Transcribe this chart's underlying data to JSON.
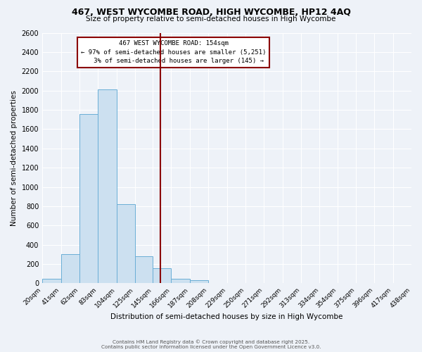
{
  "title": "467, WEST WYCOMBE ROAD, HIGH WYCOMBE, HP12 4AQ",
  "subtitle": "Size of property relative to semi-detached houses in High Wycombe",
  "xlabel": "Distribution of semi-detached houses by size in High Wycombe",
  "ylabel": "Number of semi-detached properties",
  "bin_edges": [
    20,
    41,
    62,
    83,
    104,
    125,
    145,
    166,
    187,
    208,
    229,
    250,
    271,
    292,
    313,
    334,
    354,
    375,
    396,
    417,
    438
  ],
  "bin_counts": [
    50,
    300,
    1760,
    2010,
    820,
    280,
    155,
    50,
    30,
    0,
    0,
    0,
    0,
    0,
    0,
    0,
    0,
    0,
    0,
    0
  ],
  "property_size": 154,
  "property_label": "467 WEST WYCOMBE ROAD: 154sqm",
  "pct_smaller": 97,
  "count_smaller": 5251,
  "pct_larger": 3,
  "count_larger": 145,
  "bar_fill_color": "#cce0f0",
  "bar_edge_color": "#6aaed6",
  "vline_color": "#8b0000",
  "annotation_box_edge_color": "#8b0000",
  "background_color": "#eef2f8",
  "grid_color": "#ffffff",
  "ylim": [
    0,
    2600
  ],
  "yticks": [
    0,
    200,
    400,
    600,
    800,
    1000,
    1200,
    1400,
    1600,
    1800,
    2000,
    2200,
    2400,
    2600
  ],
  "footer_line1": "Contains HM Land Registry data © Crown copyright and database right 2025.",
  "footer_line2": "Contains public sector information licensed under the Open Government Licence v3.0."
}
